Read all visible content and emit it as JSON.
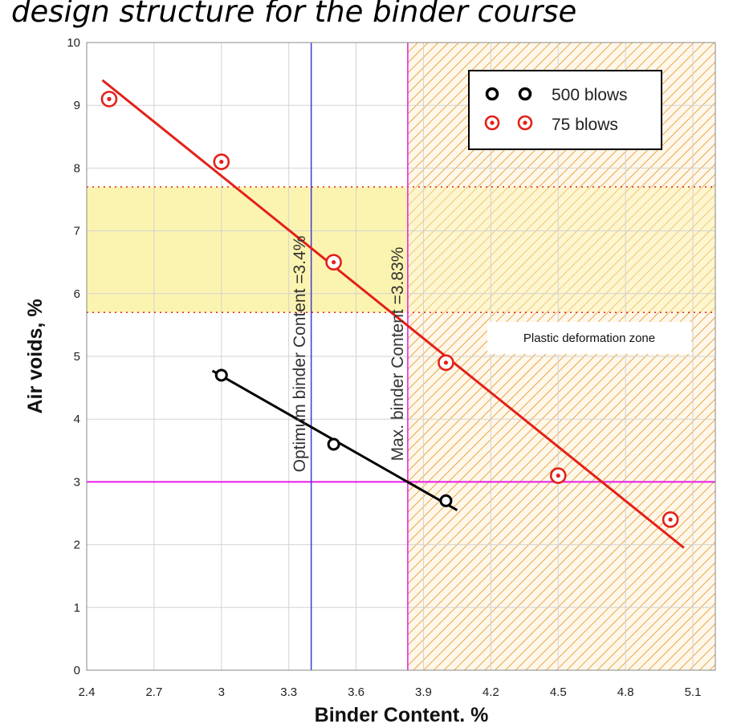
{
  "title": "design structure for the binder course",
  "chart_data": {
    "type": "scatter",
    "title": "design structure for the binder course",
    "xlabel": "Binder Content. %",
    "ylabel": "Air voids, %",
    "xlim": [
      2.4,
      5.2
    ],
    "ylim": [
      0,
      10
    ],
    "xticks": [
      "2.4",
      "2.7",
      "3",
      "3.3",
      "3.6",
      "3.9",
      "4.2",
      "4.5",
      "4.8",
      "5.1"
    ],
    "yticks": [
      "0",
      "1",
      "2",
      "3",
      "4",
      "5",
      "6",
      "7",
      "8",
      "9",
      "10"
    ],
    "grid": true,
    "legend_position": "top-right",
    "series": [
      {
        "name": "500 blows",
        "color": "#000000",
        "x": [
          3.0,
          3.5,
          4.0
        ],
        "y": [
          4.7,
          3.6,
          2.7
        ],
        "trendline": {
          "x": [
            2.96,
            4.05
          ],
          "y": [
            4.77,
            2.55
          ]
        }
      },
      {
        "name": "75 blows",
        "color": "#e32119",
        "x": [
          2.5,
          3.0,
          3.5,
          4.0,
          4.5,
          5.0
        ],
        "y": [
          9.1,
          8.1,
          6.5,
          4.9,
          3.1,
          2.4
        ],
        "trendline": {
          "x": [
            2.47,
            5.06
          ],
          "y": [
            9.4,
            1.95
          ]
        }
      }
    ],
    "reference_lines": {
      "horizontal_y": 3,
      "horizontal_color": "#e81be8",
      "optimum_x": 3.4,
      "optimum_color": "#3b3bd6",
      "max_x": 3.83,
      "max_color": "#e81be8"
    },
    "yellow_band": {
      "y_min": 5.7,
      "y_max": 7.7,
      "color": "#fbf4b0"
    },
    "hatched_zone": {
      "x_min": 3.83,
      "x_max": 5.2
    },
    "annotations": {
      "optimum_label": "Optimum binder Content =3.4%",
      "max_label": "Max. binder Content =3.83%",
      "zone_label": "Plastic deformation zone"
    }
  }
}
